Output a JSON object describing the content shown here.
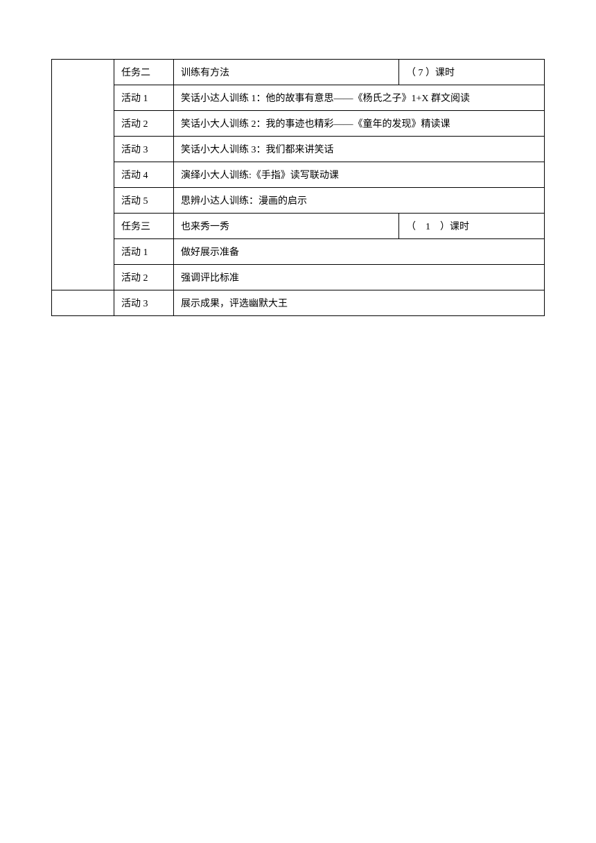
{
  "table": {
    "rows": [
      {
        "col2": "任务二",
        "col3": "训练有方法",
        "col4": "（ 7 ）课时",
        "hasCol1": true,
        "col1Rowspan": 10,
        "splitCol34": true
      },
      {
        "col2": "活动 1",
        "col3": "笑话小达人训练 1：他的故事有意思——《杨氏之子》1+X 群文阅读",
        "splitCol34": false
      },
      {
        "col2": "活动 2",
        "col3": "笑话小大人训练 2：我的事迹也精彩——《童年的发现》精读课",
        "splitCol34": false
      },
      {
        "col2": "活动 3",
        "col3": "笑话小大人训练 3：我们都来讲笑话",
        "splitCol34": false
      },
      {
        "col2": "活动 4",
        "col3": "演绎小大人训练:《手指》读写联动课",
        "splitCol34": false
      },
      {
        "col2": "活动 5",
        "col3": "思辨小达人训练：漫画的启示",
        "splitCol34": false
      },
      {
        "col2": "任务三",
        "col3": "也来秀一秀",
        "col4": "（　1　）课时",
        "splitCol34": true
      },
      {
        "col2": "活动 1",
        "col3": "做好展示准备",
        "splitCol34": false
      },
      {
        "col2": "活动 2",
        "col3": "强调评比标准",
        "splitCol34": false
      },
      {
        "col2": "活动 3",
        "col3": "展示成果，评选幽默大王",
        "hasCol1Alt": true,
        "splitCol34": false
      }
    ]
  }
}
